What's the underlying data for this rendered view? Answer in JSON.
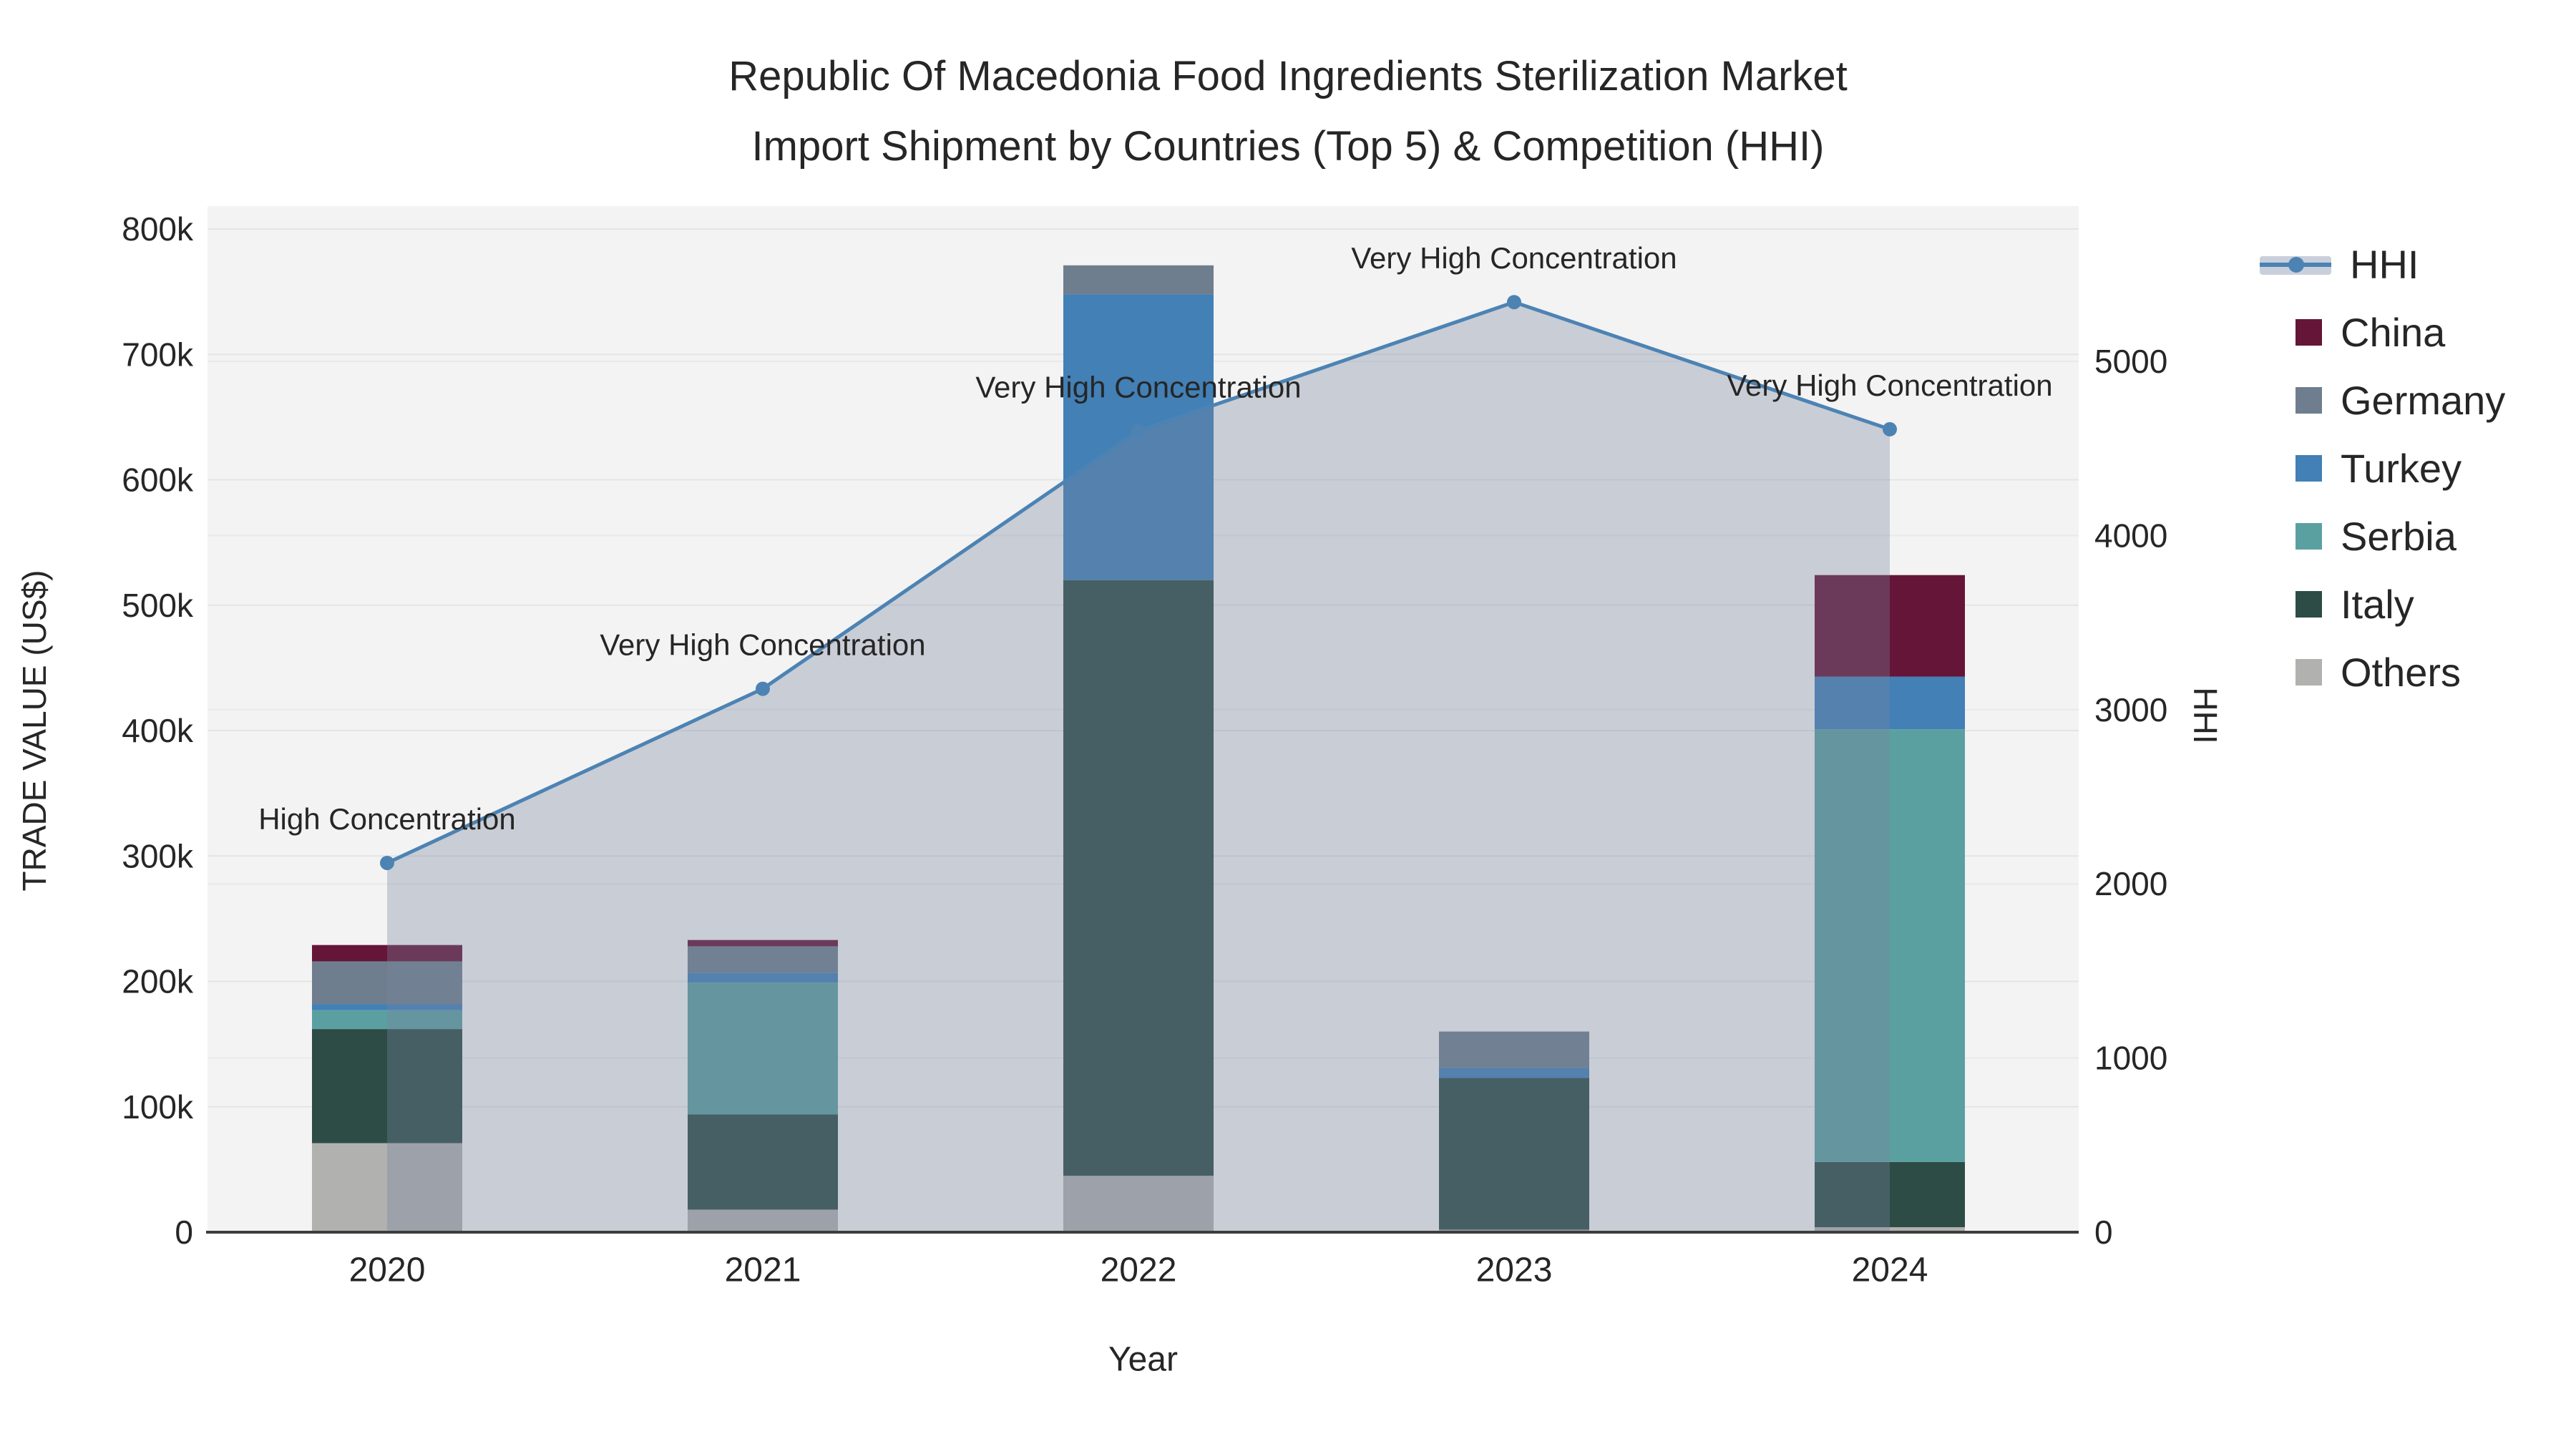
{
  "title": {
    "line1": "Republic Of Macedonia Food Ingredients Sterilization Market",
    "line2": "Import Shipment by Countries (Top 5) & Competition (HHI)"
  },
  "axes": {
    "x": {
      "title": "Year",
      "categories": [
        "2020",
        "2021",
        "2022",
        "2023",
        "2024"
      ]
    },
    "y_left": {
      "title": "TRADE VALUE (US$)",
      "max": 800000,
      "ticks": [
        {
          "value": 0,
          "label": "0"
        },
        {
          "value": 100000,
          "label": "100k"
        },
        {
          "value": 200000,
          "label": "200k"
        },
        {
          "value": 300000,
          "label": "300k"
        },
        {
          "value": 400000,
          "label": "400k"
        },
        {
          "value": 500000,
          "label": "500k"
        },
        {
          "value": 600000,
          "label": "600k"
        },
        {
          "value": 700000,
          "label": "700k"
        },
        {
          "value": 800000,
          "label": "800k"
        }
      ]
    },
    "y_right": {
      "title": "HHI",
      "max": 5760,
      "ticks": [
        {
          "value": 0,
          "label": "0"
        },
        {
          "value": 1000,
          "label": "1000"
        },
        {
          "value": 2000,
          "label": "2000"
        },
        {
          "value": 3000,
          "label": "3000"
        },
        {
          "value": 4000,
          "label": "4000"
        },
        {
          "value": 5000,
          "label": "5000"
        }
      ]
    }
  },
  "legend": {
    "items": [
      {
        "id": "hhi",
        "label": "HHI",
        "type": "line"
      },
      {
        "id": "china",
        "label": "China",
        "type": "bar"
      },
      {
        "id": "germany",
        "label": "Germany",
        "type": "bar"
      },
      {
        "id": "turkey",
        "label": "Turkey",
        "type": "bar"
      },
      {
        "id": "serbia",
        "label": "Serbia",
        "type": "bar"
      },
      {
        "id": "italy",
        "label": "Italy",
        "type": "bar"
      },
      {
        "id": "others",
        "label": "Others",
        "type": "bar"
      }
    ]
  },
  "colors": {
    "china": "#651537",
    "germany": "#6f7e8e",
    "turkey": "#4280b6",
    "serbia": "#5ba0a1",
    "italy": "#2d4c46",
    "others": "#b1b1af",
    "hhi_line": "#4c83b3",
    "hhi_fill": "rgba(119,131,158,0.34)",
    "plot_bg": "#f3f3f3",
    "grid": "#e4e4e4",
    "axis_line": "#3d3d3d",
    "text": "#262626"
  },
  "annotations": [
    {
      "year": "2020",
      "text": "High Concentration"
    },
    {
      "year": "2021",
      "text": "Very High Concentration"
    },
    {
      "year": "2022",
      "text": "Very High Concentration"
    },
    {
      "year": "2023",
      "text": "Very High Concentration"
    },
    {
      "year": "2024",
      "text": "Very High Concentration"
    }
  ],
  "chart_data": {
    "type": [
      "bar",
      "line"
    ],
    "title": "Republic Of Macedonia Food Ingredients Sterilization Market Import Shipment by Countries (Top 5) & Competition (HHI)",
    "xlabel": "Year",
    "ylabel_left": "TRADE VALUE (US$)",
    "ylabel_right": "HHI",
    "categories": [
      "2020",
      "2021",
      "2022",
      "2023",
      "2024"
    ],
    "bar_mode": "stacked",
    "bar_stack_order_bottom_to_top": [
      "Others",
      "Italy",
      "Serbia",
      "Turkey",
      "Germany",
      "China"
    ],
    "series": [
      {
        "name": "China",
        "axis": "left",
        "type": "bar",
        "values": [
          13000,
          5000,
          0,
          0,
          81000
        ]
      },
      {
        "name": "Germany",
        "axis": "left",
        "type": "bar",
        "values": [
          34000,
          21000,
          23000,
          29000,
          0
        ]
      },
      {
        "name": "Turkey",
        "axis": "left",
        "type": "bar",
        "values": [
          5000,
          8000,
          228000,
          8000,
          42000
        ]
      },
      {
        "name": "Serbia",
        "axis": "left",
        "type": "bar",
        "values": [
          15000,
          105000,
          0,
          0,
          345000
        ]
      },
      {
        "name": "Italy",
        "axis": "left",
        "type": "bar",
        "values": [
          91000,
          76000,
          475000,
          121000,
          52000
        ]
      },
      {
        "name": "Others",
        "axis": "left",
        "type": "bar",
        "values": [
          71000,
          18000,
          45000,
          2000,
          4000
        ]
      },
      {
        "name": "HHI",
        "axis": "right",
        "type": "line",
        "values": [
          2120,
          3120,
          4600,
          5340,
          4610
        ]
      }
    ],
    "ylim_left": [
      0,
      800000
    ],
    "ylim_right": [
      0,
      5760
    ],
    "grid": true,
    "legend_position": "right"
  }
}
